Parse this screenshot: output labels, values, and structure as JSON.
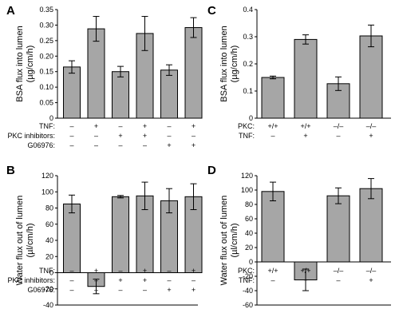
{
  "chart_data": [
    {
      "panel": "A",
      "type": "bar",
      "ylabel_lines": [
        "BSA flux into lumen",
        "(µg/cm/h)"
      ],
      "ylim": [
        0,
        0.35
      ],
      "yticks": [
        "0",
        "0.05",
        "0.10",
        "0.15",
        "0.20",
        "0.25",
        "0.30",
        "0.35"
      ],
      "values": [
        0.165,
        0.288,
        0.15,
        0.273,
        0.155,
        0.292
      ],
      "errors": [
        0.02,
        0.04,
        0.017,
        0.055,
        0.017,
        0.032
      ],
      "conditions": [
        {
          "label": "TNF:",
          "marks": [
            "–",
            "+",
            "–",
            "+",
            "–",
            "+"
          ]
        },
        {
          "label": "PKC inhibitors:",
          "marks": [
            "–",
            "–",
            "+",
            "+",
            "–",
            "–"
          ]
        },
        {
          "label": "G06976:",
          "marks": [
            "–",
            "–",
            "–",
            "–",
            "+",
            "+"
          ]
        }
      ]
    },
    {
      "panel": "B",
      "type": "bar",
      "ylabel_lines": [
        "Water flux out of lumen",
        "(µl/cm/h)"
      ],
      "ylim": [
        -40,
        120
      ],
      "yticks": [
        "-40",
        "-20",
        "0",
        "20",
        "40",
        "60",
        "80",
        "100",
        "120"
      ],
      "values": [
        85,
        -17,
        94,
        95,
        89,
        94
      ],
      "errors": [
        11,
        9,
        1.5,
        17,
        15,
        16
      ],
      "conditions": [
        {
          "label": "TNF:",
          "marks": [
            "–",
            "+",
            "–",
            "+",
            "–",
            "+"
          ]
        },
        {
          "label": "PKC inhibitors:",
          "marks": [
            "–",
            "–",
            "+",
            "+",
            "–",
            "–"
          ]
        },
        {
          "label": "G06976:",
          "marks": [
            "–",
            "–",
            "–",
            "–",
            "+",
            "+"
          ]
        }
      ]
    },
    {
      "panel": "C",
      "type": "bar",
      "ylabel_lines": [
        "BSA flux into lumen",
        "(µg/cm/h)"
      ],
      "ylim": [
        0,
        0.4
      ],
      "yticks": [
        "0",
        "0.1",
        "0.2",
        "0.3",
        "0.4"
      ],
      "values": [
        0.15,
        0.29,
        0.127,
        0.303
      ],
      "errors": [
        0.005,
        0.017,
        0.025,
        0.04
      ],
      "conditions": [
        {
          "label": "PKC:",
          "marks": [
            "+/+",
            "+/+",
            "–/–",
            "–/–"
          ]
        },
        {
          "label": "TNF:",
          "marks": [
            "–",
            "+",
            "–",
            "+"
          ]
        }
      ]
    },
    {
      "panel": "D",
      "type": "bar",
      "ylabel_lines": [
        "Water flux out of lumen",
        "(µl/cm/h)"
      ],
      "ylim": [
        -60,
        120
      ],
      "yticks": [
        "-60",
        "-40",
        "-20",
        "0",
        "20",
        "40",
        "60",
        "80",
        "100",
        "120"
      ],
      "values": [
        98,
        -25,
        92,
        102
      ],
      "errors": [
        13,
        15,
        11,
        14
      ],
      "conditions": [
        {
          "label": "PKC:",
          "marks": [
            "+/+",
            "+/+",
            "–/–",
            "–/–"
          ]
        },
        {
          "label": "TNF:",
          "marks": [
            "–",
            "+",
            "–",
            "+"
          ]
        }
      ]
    }
  ],
  "colors": {
    "bar_fill": "#a6a6a6",
    "bar_stroke": "#000000"
  }
}
